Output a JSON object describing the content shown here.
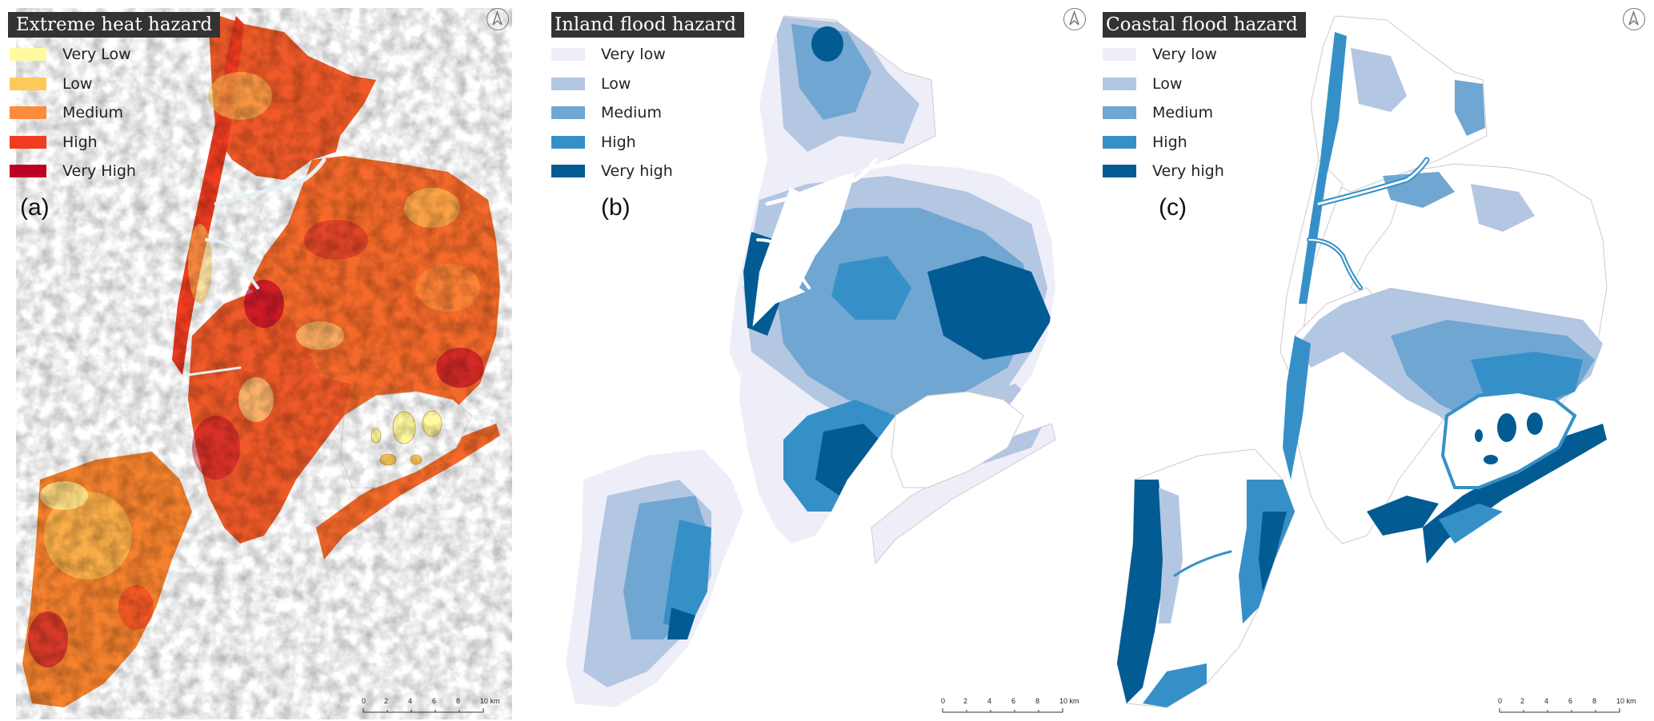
{
  "panels": [
    {
      "title": "Extreme heat hazard",
      "label": "(a)",
      "legend": [
        {
          "label": "Very Low",
          "color": "#fffaa0"
        },
        {
          "label": "Low",
          "color": "#fdc95a"
        },
        {
          "label": "Medium",
          "color": "#fd8c3a"
        },
        {
          "label": "High",
          "color": "#f03c20"
        },
        {
          "label": "Very High",
          "color": "#bd0026"
        }
      ]
    },
    {
      "title": "Inland flood hazard",
      "label": "(b)",
      "legend": [
        {
          "label": "Very low",
          "color": "#eeeef8"
        },
        {
          "label": "Low",
          "color": "#b3c6e2"
        },
        {
          "label": "Medium",
          "color": "#6fa6d2"
        },
        {
          "label": "High",
          "color": "#3690c8"
        },
        {
          "label": "Very high",
          "color": "#035b93"
        }
      ]
    },
    {
      "title": "Coastal flood hazard",
      "label": "(c)",
      "legend": [
        {
          "label": "Very low",
          "color": "#eeeef8"
        },
        {
          "label": "Low",
          "color": "#b3c6e2"
        },
        {
          "label": "Medium",
          "color": "#6fa6d2"
        },
        {
          "label": "High",
          "color": "#3690c8"
        },
        {
          "label": "Very high",
          "color": "#035b93"
        }
      ]
    }
  ],
  "scale": {
    "ticks": [
      "0",
      "2",
      "4",
      "6",
      "8",
      "10 km"
    ]
  },
  "icons": {
    "north": "north-arrow-icon"
  }
}
